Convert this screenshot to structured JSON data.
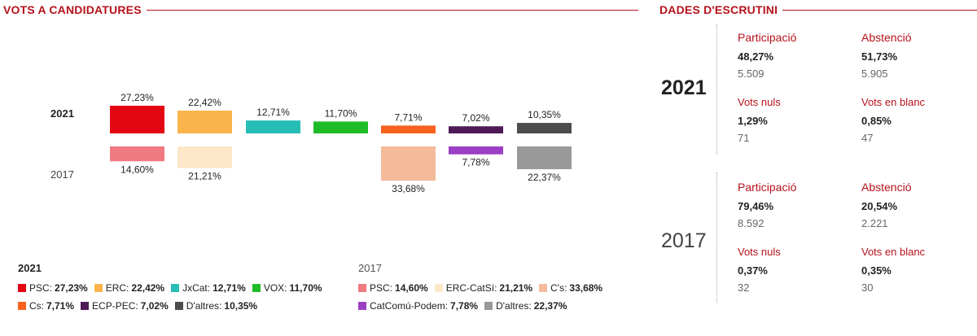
{
  "headings": {
    "votes": "VOTS A CANDIDATURES",
    "scrutiny": "DADES D'ESCRUTINI"
  },
  "chart_data": {
    "type": "bar",
    "years": [
      "2021",
      "2017"
    ],
    "parties_2021": [
      {
        "name": "PSC",
        "value": 27.23,
        "label": "27,23%",
        "color": "#e30613"
      },
      {
        "name": "ERC",
        "value": 22.42,
        "label": "22,42%",
        "color": "#fbb34c"
      },
      {
        "name": "JxCat",
        "value": 12.71,
        "label": "12,71%",
        "color": "#26bdb4"
      },
      {
        "name": "VOX",
        "value": 11.7,
        "label": "11,70%",
        "color": "#1ebd28"
      },
      {
        "name": "Cs",
        "value": 7.71,
        "label": "7,71%",
        "color": "#f9611e"
      },
      {
        "name": "ECP-PEC",
        "value": 7.02,
        "label": "7,02%",
        "color": "#4e1b57"
      },
      {
        "name": "D'altres",
        "value": 10.35,
        "label": "10,35%",
        "color": "#4d4d4d"
      }
    ],
    "parties_2017": [
      {
        "name": "PSC",
        "value": 14.6,
        "label": "14,60%",
        "color": "#f07a82",
        "col": 0
      },
      {
        "name": "ERC-CatSí",
        "value": 21.21,
        "label": "21,21%",
        "color": "#fde7c8",
        "col": 1
      },
      {
        "name": "C's",
        "value": 33.68,
        "label": "33,68%",
        "color": "#f4bb9a",
        "col": 4
      },
      {
        "name": "CatComú-Podem",
        "value": 7.78,
        "label": "7,78%",
        "color": "#9c3fc4",
        "col": 5
      },
      {
        "name": "D'altres",
        "value": 22.37,
        "label": "22,37%",
        "color": "#999999",
        "col": 6
      }
    ]
  },
  "legend_2021": {
    "year": "2021",
    "rows": [
      [
        {
          "name": "PSC:",
          "value": "27,23%",
          "color": "#e30613"
        },
        {
          "name": "ERC:",
          "value": "22,42%",
          "color": "#fbb34c"
        },
        {
          "name": "JxCat:",
          "value": "12,71%",
          "color": "#26bdb4"
        },
        {
          "name": "VOX:",
          "value": "11,70%",
          "color": "#1ebd28"
        }
      ],
      [
        {
          "name": "Cs:",
          "value": "7,71%",
          "color": "#f9611e"
        },
        {
          "name": "ECP-PEC:",
          "value": "7,02%",
          "color": "#4e1b57"
        },
        {
          "name": "D'altres:",
          "value": "10,35%",
          "color": "#4d4d4d"
        }
      ]
    ]
  },
  "legend_2017": {
    "year": "2017",
    "rows": [
      [
        {
          "name": "PSC:",
          "value": "14,60%",
          "color": "#f07a82"
        },
        {
          "name": "ERC-CatSí:",
          "value": "21,21%",
          "color": "#fde7c8"
        },
        {
          "name": "C's:",
          "value": "33,68%",
          "color": "#f4bb9a"
        }
      ],
      [
        {
          "name": "CatComú-Podem:",
          "value": "7,78%",
          "color": "#9c3fc4"
        },
        {
          "name": "D'altres:",
          "value": "22,37%",
          "color": "#999999"
        }
      ]
    ]
  },
  "scrutiny": {
    "y2021": {
      "year": "2021",
      "participation_label": "Participació",
      "participation_pct": "48,27%",
      "participation_votes": "5.509",
      "abstention_label": "Abstenció",
      "abstention_pct": "51,73%",
      "abstention_votes": "5.905",
      "null_label": "Vots nuls",
      "null_pct": "1,29%",
      "null_votes": "71",
      "blank_label": "Vots en blanc",
      "blank_pct": "0,85%",
      "blank_votes": "47"
    },
    "y2017": {
      "year": "2017",
      "participation_label": "Participació",
      "participation_pct": "79,46%",
      "participation_votes": "8.592",
      "abstention_label": "Abstenció",
      "abstention_pct": "20,54%",
      "abstention_votes": "2.221",
      "null_label": "Vots nuls",
      "null_pct": "0,37%",
      "null_votes": "32",
      "blank_label": "Vots en blanc",
      "blank_pct": "0,35%",
      "blank_votes": "30"
    }
  }
}
